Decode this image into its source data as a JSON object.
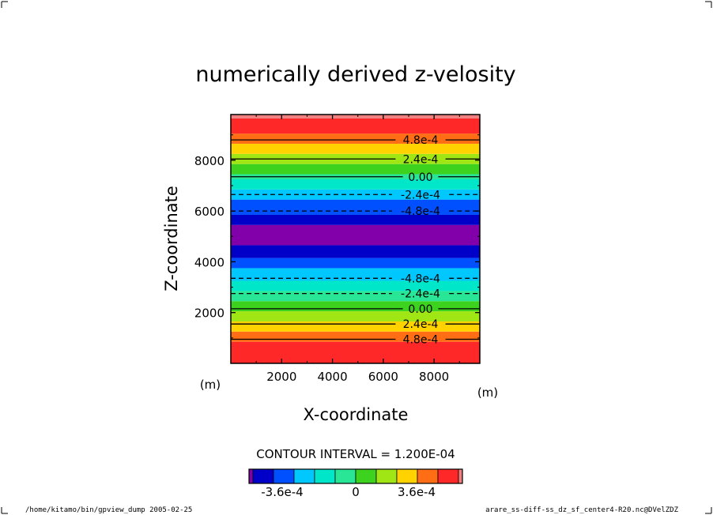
{
  "title": "numerically derived z-velosity",
  "chart_data": {
    "type": "heatmap",
    "title": "numerically derived z-velosity",
    "xlabel": "X-coordinate",
    "ylabel": "Z-coordinate",
    "x_unit": "(m)",
    "y_unit": "(m)",
    "xlim": [
      0,
      9800
    ],
    "ylim": [
      0,
      9800
    ],
    "x_ticks": [
      2000,
      4000,
      6000,
      8000
    ],
    "y_ticks": [
      2000,
      4000,
      6000,
      8000
    ],
    "x_tick_labels": [
      "2000",
      "4000",
      "6000",
      "8000"
    ],
    "y_tick_labels": [
      "2000",
      "4000",
      "6000",
      "8000"
    ],
    "bands": [
      {
        "z0": 0,
        "z1": 850,
        "color": "#ff2828"
      },
      {
        "z0": 850,
        "z1": 1250,
        "color": "#ff6e14"
      },
      {
        "z0": 1250,
        "z1": 1650,
        "color": "#ffd200"
      },
      {
        "z0": 1650,
        "z1": 2050,
        "color": "#a0e614"
      },
      {
        "z0": 2050,
        "z1": 2450,
        "color": "#3cd21e"
      },
      {
        "z0": 2450,
        "z1": 2850,
        "color": "#28e696"
      },
      {
        "z0": 2850,
        "z1": 3250,
        "color": "#00e6c8"
      },
      {
        "z0": 3250,
        "z1": 3750,
        "color": "#00c8ff"
      },
      {
        "z0": 3750,
        "z1": 4150,
        "color": "#0050ff"
      },
      {
        "z0": 4150,
        "z1": 4650,
        "color": "#0000c8"
      },
      {
        "z0": 4650,
        "z1": 5450,
        "color": "#8200aa"
      },
      {
        "z0": 5450,
        "z1": 5850,
        "color": "#0000c8"
      },
      {
        "z0": 5850,
        "z1": 6450,
        "color": "#0050ff"
      },
      {
        "z0": 6450,
        "z1": 6850,
        "color": "#00c8ff"
      },
      {
        "z0": 6850,
        "z1": 7250,
        "color": "#00e6c8"
      },
      {
        "z0": 7250,
        "z1": 7450,
        "color": "#28e696"
      },
      {
        "z0": 7450,
        "z1": 7850,
        "color": "#3cd21e"
      },
      {
        "z0": 7850,
        "z1": 8250,
        "color": "#a0e614"
      },
      {
        "z0": 8250,
        "z1": 8650,
        "color": "#ffd200"
      },
      {
        "z0": 8650,
        "z1": 9050,
        "color": "#ff6e14"
      },
      {
        "z0": 9050,
        "z1": 9650,
        "color": "#ff2828"
      },
      {
        "z0": 9650,
        "z1": 9800,
        "color": "#f08080"
      }
    ],
    "contours": [
      {
        "z": 950,
        "value": 0.00048,
        "label": "4.8e-4",
        "dashed": false
      },
      {
        "z": 1550,
        "value": 0.00024,
        "label": "2.4e-4",
        "dashed": false
      },
      {
        "z": 2150,
        "value": 0.0,
        "label": "0.00",
        "dashed": false
      },
      {
        "z": 2750,
        "value": -0.00024,
        "label": "-2.4e-4",
        "dashed": true
      },
      {
        "z": 3350,
        "value": -0.00048,
        "label": "-4.8e-4",
        "dashed": true
      },
      {
        "z": 6000,
        "value": -0.00048,
        "label": "-4.8e-4",
        "dashed": true
      },
      {
        "z": 6650,
        "value": -0.00024,
        "label": "-2.4e-4",
        "dashed": true
      },
      {
        "z": 7350,
        "value": 0.0,
        "label": "0.00",
        "dashed": false
      },
      {
        "z": 8050,
        "value": 0.00024,
        "label": "2.4e-4",
        "dashed": false
      },
      {
        "z": 8800,
        "value": 0.00048,
        "label": "4.8e-4",
        "dashed": false
      }
    ],
    "contour_interval_text": "CONTOUR INTERVAL = 1.200E-04",
    "colorbar": {
      "colors": [
        "#8200aa",
        "#0000c8",
        "#0050ff",
        "#00c8ff",
        "#00e6c8",
        "#28e696",
        "#3cd21e",
        "#a0e614",
        "#ffd200",
        "#ff6e14",
        "#ff2828",
        "#f08080"
      ],
      "tick_labels": [
        "-3.6e-4",
        "0",
        "3.6e-4"
      ]
    }
  },
  "footer": {
    "left": "/home/kitamo/bin/gpview_dump  2005-02-25",
    "right": "arare_ss-diff-ss_dz_sf_center4-R20.nc@DVelZDZ"
  }
}
